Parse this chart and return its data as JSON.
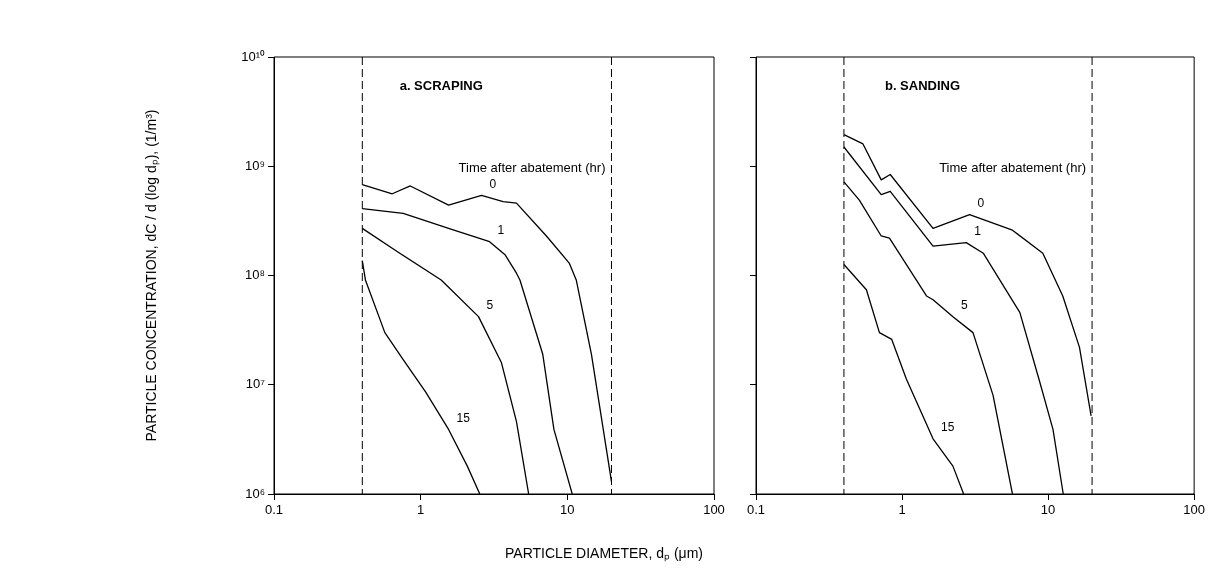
{
  "chart_data": [
    {
      "type": "line",
      "title": "a. SCRAPING",
      "ylabel": "PARTICLE CONCENTRATION, dC / d (log dₚ), (1/m³)",
      "xlabel": "PARTICLE DIAMETER, dₚ (μm)",
      "annotations": [
        "Time after abatement (hr)"
      ],
      "log": "xy",
      "grid": false,
      "legend": false,
      "marker": "none",
      "line_style": "solid",
      "xlim": [
        0.1,
        100
      ],
      "xticks": [
        0.1,
        1,
        10,
        100
      ],
      "ylim": [
        1000000,
        10000000000
      ],
      "yticks": [
        {
          "value": 1000000,
          "label": "10⁶"
        },
        {
          "value": 10000000,
          "label": "10⁷"
        },
        {
          "value": 100000000,
          "label": "10⁸"
        },
        {
          "value": 1000000000,
          "label": "10⁹"
        },
        {
          "value": 10000000000,
          "label": "10¹⁰"
        }
      ],
      "ref_lines": [
        {
          "axis": "x",
          "value": 0.4,
          "color": "#000000",
          "line_style": "dashed"
        },
        {
          "axis": "x",
          "value": 20,
          "color": "#000000",
          "line_style": "dashed"
        }
      ],
      "series": [
        {
          "name": "0",
          "color": "#000000",
          "x": [
            0.4,
            0.64,
            0.85,
            1.55,
            2.6,
            3.65,
            4.5,
            7.2,
            10.3,
            11.5,
            14.6,
            20
          ],
          "values": [
            680000000,
            560000000,
            660000000,
            440000000,
            540000000,
            475000000,
            460000000,
            230000000,
            130000000,
            91000000,
            19000000,
            1300000
          ]
        },
        {
          "name": "1",
          "color": "#000000",
          "x": [
            0.4,
            0.76,
            1.55,
            2.95,
            3.76,
            4.5,
            4.75,
            6.8,
            8.1,
            10.8
          ],
          "values": [
            410000000,
            370000000,
            270000000,
            204000000,
            155000000,
            105000000,
            91000000,
            19000000,
            3900000,
            1000000
          ]
        },
        {
          "name": "5",
          "color": "#000000",
          "x": [
            0.4,
            0.72,
            1.38,
            2.48,
            3.55,
            4.5,
            5.45
          ],
          "values": [
            270000000,
            160000000,
            91000000,
            42000000,
            16000000,
            4600000,
            1000000
          ]
        },
        {
          "name": "15",
          "color": "#000000",
          "x": [
            0.4,
            0.42,
            0.57,
            0.76,
            1.08,
            1.55,
            2.08,
            2.53
          ],
          "values": [
            137000000,
            91000000,
            30000000,
            17000000,
            8600000,
            3900000,
            1800000,
            1000000
          ]
        }
      ]
    },
    {
      "type": "line",
      "title": "b. SANDING",
      "annotations": [
        "Time after abatement (hr)"
      ],
      "log": "xy",
      "grid": false,
      "legend": false,
      "marker": "none",
      "line_style": "solid",
      "tick_labels": "x",
      "xlim": [
        0.1,
        100
      ],
      "xticks": [
        0.1,
        1,
        10,
        100
      ],
      "ylim": [
        1000000,
        10000000000
      ],
      "yticks": [
        {
          "value": 1000000,
          "label": null
        },
        {
          "value": 10000000,
          "label": null
        },
        {
          "value": 100000000,
          "label": null
        },
        {
          "value": 1000000000,
          "label": null
        },
        {
          "value": 10000000000,
          "label": null
        }
      ],
      "ref_lines": [
        {
          "axis": "x",
          "value": 0.4,
          "color": "#000000",
          "line_style": "dashed"
        },
        {
          "axis": "x",
          "value": 20,
          "color": "#000000",
          "line_style": "dashed"
        }
      ],
      "series": [
        {
          "name": "0",
          "color": "#000000",
          "x": [
            0.4,
            0.54,
            0.72,
            0.83,
            1.63,
            2.9,
            5.7,
            9.2,
            12.6,
            16.4,
            19.7
          ],
          "values": [
            1950000000,
            1600000000,
            750000000,
            840000000,
            270000000,
            360000000,
            260000000,
            160000000,
            65000000,
            22000000,
            5200000
          ]
        },
        {
          "name": "1",
          "color": "#000000",
          "x": [
            0.4,
            0.72,
            0.83,
            1.63,
            2.75,
            3.6,
            5.45,
            6.4,
            8.7,
            10.8,
            12.7
          ],
          "values": [
            1500000000,
            550000000,
            590000000,
            186000000,
            200000000,
            160000000,
            65000000,
            46000000,
            11000000,
            3900000,
            1000000
          ]
        },
        {
          "name": "5",
          "color": "#000000",
          "x": [
            0.4,
            0.51,
            0.72,
            0.82,
            1.47,
            1.63,
            2.23,
            3.06,
            4.2,
            5.7
          ],
          "values": [
            720000000,
            490000000,
            230000000,
            220000000,
            65000000,
            60000000,
            42000000,
            30000000,
            8000000,
            1000000
          ]
        },
        {
          "name": "15",
          "color": "#000000",
          "x": [
            0.4,
            0.57,
            0.7,
            0.85,
            1.07,
            1.63,
            2.23,
            2.64
          ],
          "values": [
            126000000,
            74000000,
            30000000,
            26000000,
            11300000,
            3200000,
            1800000,
            1000000
          ]
        }
      ]
    }
  ]
}
